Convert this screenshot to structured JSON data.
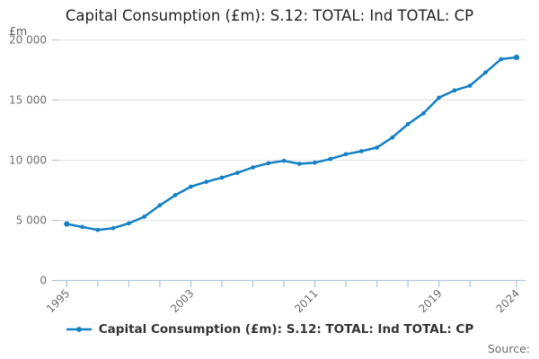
{
  "title": "Capital Consumption (£m): S.12: TOTAL: Ind TOTAL: CP",
  "y_unit_label": "£m",
  "source_label": "Source:",
  "legend": {
    "label": "Capital Consumption (£m): S.12: TOTAL: Ind TOTAL: CP"
  },
  "colors": {
    "line": "#1380c4",
    "gridline": "#e1e1e1",
    "axis_line": "#b5c7d6",
    "x_tick": "#b5c7d6",
    "y_tick": "#b9b9b9",
    "axis_text": "#6e6e6e",
    "title_text": "#222222",
    "legend_text": "#333333",
    "source_text": "#6e6e6e"
  },
  "chart_data": {
    "type": "line",
    "title": "Capital Consumption (£m): S.12: TOTAL: Ind TOTAL: CP",
    "xlabel": "",
    "ylabel": "£m",
    "ylim": [
      0,
      20000
    ],
    "grid": "horizontal",
    "legend_position": "bottom",
    "yticks": [
      {
        "value": 0,
        "label": "0"
      },
      {
        "value": 5000,
        "label": "5 000"
      },
      {
        "value": 10000,
        "label": "10 000"
      },
      {
        "value": 15000,
        "label": "15 000"
      },
      {
        "value": 20000,
        "label": "20 000"
      }
    ],
    "xtick_years": [
      1995,
      1997,
      1999,
      2001,
      2003,
      2005,
      2007,
      2009,
      2011,
      2013,
      2015,
      2017,
      2019,
      2021,
      2024
    ],
    "xtick_labeled_years": [
      1995,
      2003,
      2011,
      2019,
      2024
    ],
    "x": [
      1995,
      1996,
      1997,
      1998,
      1999,
      2000,
      2001,
      2002,
      2003,
      2004,
      2005,
      2006,
      2007,
      2008,
      2009,
      2010,
      2011,
      2012,
      2013,
      2014,
      2015,
      2016,
      2017,
      2018,
      2019,
      2020,
      2021,
      2022,
      2023,
      2024
    ],
    "series": [
      {
        "name": "Capital Consumption (£m): S.12: TOTAL: Ind TOTAL: CP",
        "values": [
          4700,
          4450,
          4200,
          4350,
          4750,
          5300,
          6250,
          7100,
          7800,
          8200,
          8550,
          8950,
          9400,
          9750,
          9950,
          9700,
          9800,
          10100,
          10500,
          10750,
          11050,
          11900,
          13000,
          13900,
          15200,
          15800,
          16200,
          17300,
          18400,
          18550
        ]
      }
    ]
  }
}
